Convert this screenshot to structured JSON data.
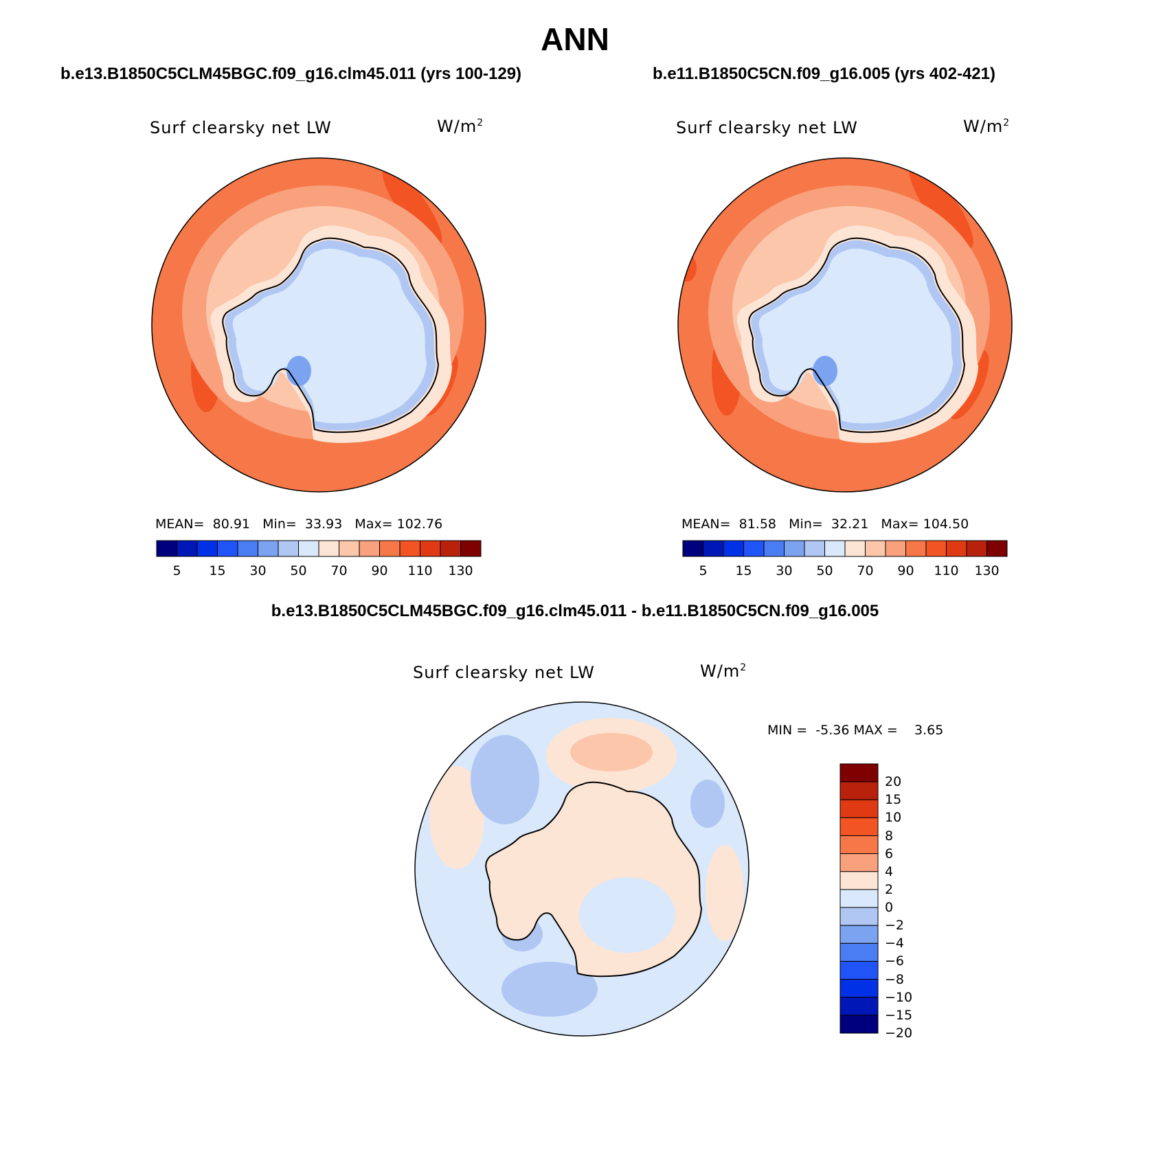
{
  "title": "ANN",
  "panels": [
    {
      "case_title": "b.e13.B1850C5CLM45BGC.f09_g16.clm45.011 (yrs 100-129)",
      "variable_label": "Surf clearsky net LW",
      "units": "W/m",
      "units_exp": "2",
      "stats": {
        "mean_label": "MEAN=",
        "mean": "80.91",
        "min_label": "Min=",
        "min": "33.93",
        "max_label": "Max=",
        "max": "102.76"
      }
    },
    {
      "case_title": "b.e11.B1850C5CN.f09_g16.005 (yrs 402-421)",
      "variable_label": "Surf clearsky net LW",
      "units": "W/m",
      "units_exp": "2",
      "stats": {
        "mean_label": "MEAN=",
        "mean": "81.58",
        "min_label": "Min=",
        "min": "32.21",
        "max_label": "Max=",
        "max": "104.50"
      }
    }
  ],
  "colorbar_abs": {
    "colors": [
      "#00007f",
      "#0017b8",
      "#0031e6",
      "#2054f7",
      "#4a7df4",
      "#7ba3f0",
      "#b0c7f3",
      "#d9e8fb",
      "#fde5d5",
      "#fcc6ab",
      "#f9a07d",
      "#f67848",
      "#f25424",
      "#e03a14",
      "#b8220c",
      "#7f0000"
    ],
    "tick_labels": [
      "5",
      "15",
      "30",
      "50",
      "70",
      "90",
      "110",
      "130"
    ]
  },
  "difference_panel": {
    "title": "b.e13.B1850C5CLM45BGC.f09_g16.clm45.011 - b.e11.B1850C5CN.f09_g16.005",
    "variable_label": "Surf clearsky net LW",
    "units": "W/m",
    "units_exp": "2",
    "stats": {
      "min_label": "MIN =",
      "min": "-5.36",
      "max_label": "MAX =",
      "max": "3.65"
    }
  },
  "colorbar_diff": {
    "colors_top_to_bottom": [
      "#7f0000",
      "#b8220c",
      "#e03a14",
      "#f25424",
      "#f67848",
      "#f9a07d",
      "#fde5d5",
      "#d9e8fb",
      "#b0c7f3",
      "#7ba3f0",
      "#4a7df4",
      "#2054f7",
      "#0031e6",
      "#0017b8",
      "#00007f"
    ],
    "tick_labels_top_to_bottom": [
      "20",
      "15",
      "10",
      "8",
      "6",
      "4",
      "2",
      "0",
      "−2",
      "−4",
      "−6",
      "−8",
      "−10",
      "−15",
      "−20"
    ]
  },
  "map_colors": {
    "ocean_outer": "#f67848",
    "ocean_strong": "#f25424",
    "ocean_mid": "#f9a07d",
    "ocean_inner": "#fcc6ab",
    "coast": "#fde5d5",
    "ice_light": "#d9e8fb",
    "ice_mid": "#b0c7f3",
    "ice_dark": "#7ba3f0",
    "diff_base": "#d9e8fb",
    "diff_neg": "#b0c7f3",
    "diff_neg_strong": "#7ba3f0",
    "diff_pos": "#fde5d5",
    "diff_pos_strong": "#fcc6ab"
  }
}
